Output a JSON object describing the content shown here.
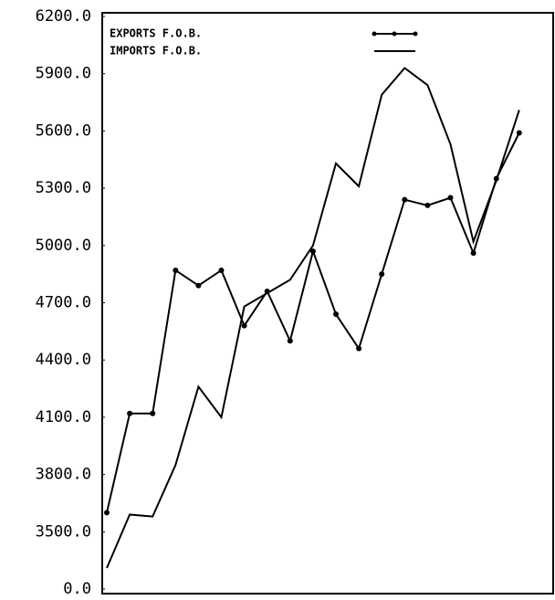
{
  "chart_data": {
    "type": "line",
    "categories": [
      null,
      null,
      null,
      null,
      null,
      null,
      null,
      null,
      null,
      null,
      null,
      null,
      null,
      null,
      null,
      null,
      null,
      null,
      null
    ],
    "series": [
      {
        "name": "EXPORTS F.O.B.",
        "color": "#000000",
        "markers": true,
        "values": [
          3600,
          4120,
          4120,
          4870,
          4790,
          4870,
          4580,
          4760,
          4500,
          4970,
          4640,
          4460,
          4850,
          5240,
          5210,
          5250,
          4960,
          5350,
          5590
        ]
      },
      {
        "name": "IMPORTS F.O.B.",
        "color": "#000000",
        "markers": false,
        "values": [
          3310,
          3590,
          3580,
          3850,
          4260,
          4100,
          4680,
          4750,
          4820,
          5000,
          5430,
          5310,
          5790,
          5930,
          5840,
          5530,
          5020,
          5340,
          5710
        ]
      }
    ],
    "ylim": [
      0,
      6200
    ],
    "ybreak": [
      0,
      3200
    ],
    "yticks": [
      {
        "value": 0,
        "label": "0.0"
      },
      {
        "value": 3500,
        "label": "3500.0"
      },
      {
        "value": 3800,
        "label": "3800.0"
      },
      {
        "value": 4100,
        "label": "4100.0"
      },
      {
        "value": 4400,
        "label": "4400.0"
      },
      {
        "value": 4700,
        "label": "4700.0"
      },
      {
        "value": 5000,
        "label": "5000.0"
      },
      {
        "value": 5300,
        "label": "5300.0"
      },
      {
        "value": 5600,
        "label": "5600.0"
      },
      {
        "value": 5900,
        "label": "5900.0"
      },
      {
        "value": 6200,
        "label": "6200.0"
      }
    ],
    "legend": "top-left"
  }
}
